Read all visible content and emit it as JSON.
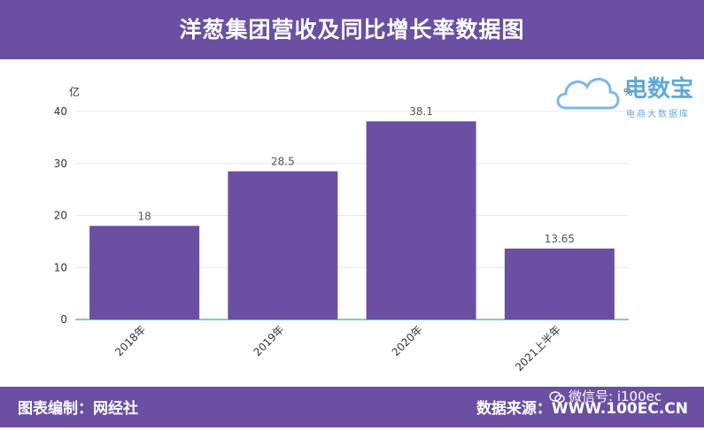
{
  "header": {
    "title": "洋葱集团营收及同比增长率数据图"
  },
  "footer": {
    "left": "图表编制：网经社",
    "right": "数据来源：WWW.100EC.CN",
    "wechat": "微信号: i100ec"
  },
  "logo": {
    "title": "电数宝",
    "subtitle": "电商大数据库",
    "mark": "eDT"
  },
  "colors": {
    "brand": "#6a4fa3",
    "bar": "#6a4fa3",
    "axis": "#5ab0d8",
    "grid": "#e8e8e8"
  },
  "chart_data": {
    "type": "bar",
    "categories": [
      "2018年",
      "2019年",
      "2020年",
      "2021上半年"
    ],
    "values": [
      18,
      28.5,
      38.1,
      13.65
    ],
    "value_labels": [
      "18",
      "28.5",
      "38.1",
      "13.65"
    ],
    "ylabel": "亿",
    "ylim": [
      0,
      40
    ],
    "yticks": [
      0,
      10,
      20,
      30,
      40
    ],
    "y2label": "%",
    "grid": true
  }
}
